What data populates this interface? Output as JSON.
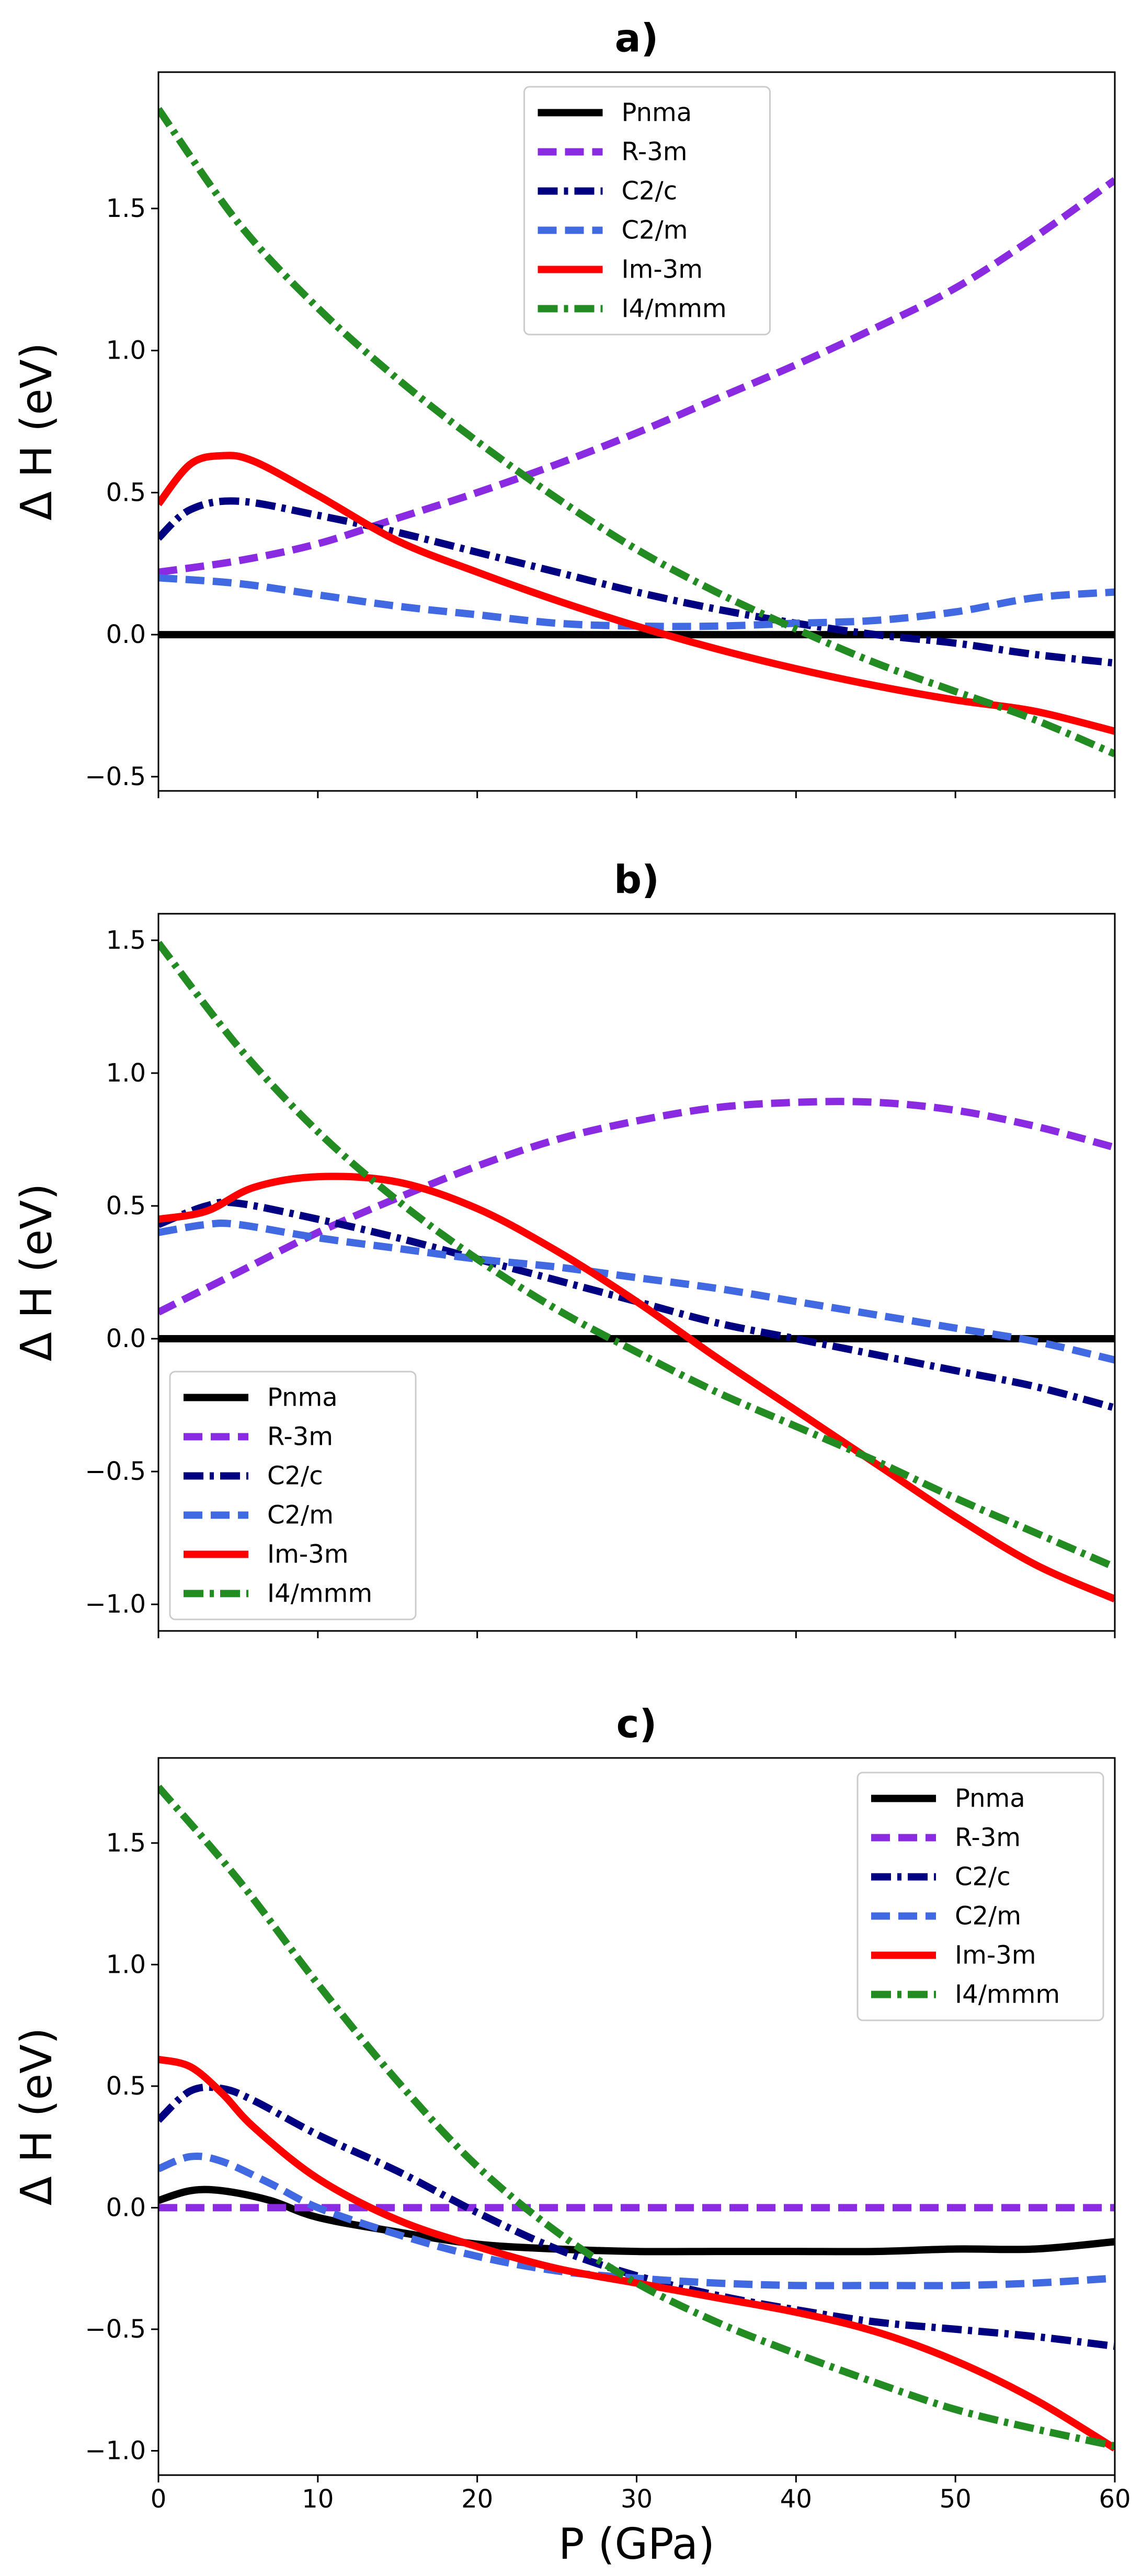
{
  "chart_data": [
    {
      "panel": "a",
      "type": "line",
      "title": "a)",
      "xlabel": "",
      "ylabel": "Δ H (eV)",
      "xlim": [
        0,
        60
      ],
      "ylim": [
        -0.55,
        1.98
      ],
      "xticks": [
        0,
        10,
        20,
        30,
        40,
        50,
        60
      ],
      "yticks": [
        -0.5,
        0.0,
        0.5,
        1.0,
        1.5
      ],
      "ytick_labels": [
        "−0.5",
        "0.0",
        "0.5",
        "1.0",
        "1.5"
      ],
      "show_xtick_labels": false,
      "grid": false,
      "legend_position": "top-center",
      "series": [
        {
          "name": "Pnma",
          "x": [
            0,
            10,
            20,
            30,
            40,
            50,
            60
          ],
          "y": [
            0,
            0,
            0,
            0,
            0,
            0,
            0
          ]
        },
        {
          "name": "R-3m",
          "x": [
            0,
            5,
            10,
            15,
            20,
            25,
            30,
            35,
            40,
            45,
            50,
            55,
            60
          ],
          "y": [
            0.22,
            0.26,
            0.32,
            0.41,
            0.5,
            0.6,
            0.71,
            0.83,
            0.95,
            1.08,
            1.22,
            1.4,
            1.6
          ]
        },
        {
          "name": "C2/c",
          "x": [
            0,
            2,
            5,
            10,
            15,
            20,
            25,
            30,
            35,
            40,
            45,
            50,
            55,
            60
          ],
          "y": [
            0.34,
            0.44,
            0.47,
            0.42,
            0.36,
            0.29,
            0.22,
            0.15,
            0.09,
            0.04,
            0.0,
            -0.03,
            -0.07,
            -0.1
          ]
        },
        {
          "name": "C2/m",
          "x": [
            0,
            5,
            10,
            15,
            20,
            25,
            30,
            35,
            40,
            45,
            50,
            55,
            60
          ],
          "y": [
            0.2,
            0.18,
            0.14,
            0.1,
            0.07,
            0.04,
            0.03,
            0.03,
            0.04,
            0.05,
            0.08,
            0.13,
            0.15
          ]
        },
        {
          "name": "Im-3m",
          "x": [
            0,
            2,
            4,
            6,
            10,
            15,
            20,
            25,
            30,
            35,
            40,
            45,
            50,
            55,
            60
          ],
          "y": [
            0.46,
            0.6,
            0.63,
            0.61,
            0.49,
            0.33,
            0.22,
            0.12,
            0.03,
            -0.05,
            -0.12,
            -0.18,
            -0.23,
            -0.27,
            -0.34
          ]
        },
        {
          "name": "I4/mmm",
          "x": [
            0,
            5,
            10,
            15,
            20,
            25,
            30,
            35,
            40,
            45,
            50,
            55,
            60
          ],
          "y": [
            1.85,
            1.45,
            1.15,
            0.9,
            0.68,
            0.48,
            0.3,
            0.15,
            0.02,
            -0.1,
            -0.2,
            -0.3,
            -0.42
          ]
        }
      ]
    },
    {
      "panel": "b",
      "type": "line",
      "title": "b)",
      "xlabel": "",
      "ylabel": "Δ H (eV)",
      "xlim": [
        0,
        60
      ],
      "ylim": [
        -1.1,
        1.6
      ],
      "xticks": [
        0,
        10,
        20,
        30,
        40,
        50,
        60
      ],
      "yticks": [
        -1.0,
        -0.5,
        0.0,
        0.5,
        1.0,
        1.5
      ],
      "ytick_labels": [
        "−1.0",
        "−0.5",
        "0.0",
        "0.5",
        "1.0",
        "1.5"
      ],
      "show_xtick_labels": false,
      "grid": false,
      "legend_position": "lower-left",
      "series": [
        {
          "name": "Pnma",
          "x": [
            0,
            10,
            20,
            30,
            40,
            50,
            60
          ],
          "y": [
            0,
            0,
            0,
            0,
            0,
            0,
            0
          ]
        },
        {
          "name": "R-3m",
          "x": [
            0,
            5,
            10,
            15,
            20,
            25,
            30,
            35,
            40,
            45,
            50,
            55,
            60
          ],
          "y": [
            0.1,
            0.25,
            0.4,
            0.53,
            0.65,
            0.75,
            0.82,
            0.87,
            0.89,
            0.89,
            0.86,
            0.8,
            0.72
          ]
        },
        {
          "name": "C2/c",
          "x": [
            0,
            3,
            5,
            10,
            15,
            20,
            25,
            30,
            35,
            40,
            45,
            50,
            55,
            60
          ],
          "y": [
            0.43,
            0.5,
            0.51,
            0.45,
            0.38,
            0.3,
            0.22,
            0.14,
            0.06,
            0.0,
            -0.06,
            -0.12,
            -0.18,
            -0.26
          ]
        },
        {
          "name": "C2/m",
          "x": [
            0,
            3,
            5,
            10,
            15,
            20,
            25,
            30,
            35,
            40,
            45,
            50,
            55,
            60
          ],
          "y": [
            0.4,
            0.43,
            0.43,
            0.38,
            0.34,
            0.3,
            0.27,
            0.23,
            0.19,
            0.14,
            0.09,
            0.04,
            -0.01,
            -0.08
          ]
        },
        {
          "name": "Im-3m",
          "x": [
            0,
            3,
            6,
            10,
            15,
            20,
            25,
            30,
            35,
            40,
            45,
            50,
            55,
            60
          ],
          "y": [
            0.45,
            0.48,
            0.57,
            0.61,
            0.59,
            0.49,
            0.33,
            0.14,
            -0.07,
            -0.27,
            -0.47,
            -0.67,
            -0.85,
            -0.98
          ]
        },
        {
          "name": "I4/mmm",
          "x": [
            0,
            5,
            10,
            15,
            20,
            25,
            30,
            35,
            40,
            45,
            50,
            55,
            60
          ],
          "y": [
            1.49,
            1.1,
            0.78,
            0.52,
            0.3,
            0.11,
            -0.05,
            -0.2,
            -0.33,
            -0.46,
            -0.6,
            -0.73,
            -0.86
          ]
        }
      ]
    },
    {
      "panel": "c",
      "type": "line",
      "title": "c)",
      "xlabel": "P (GPa)",
      "ylabel": "Δ H (eV)",
      "xlim": [
        0,
        60
      ],
      "ylim": [
        -1.1,
        1.85
      ],
      "xticks": [
        0,
        10,
        20,
        30,
        40,
        50,
        60
      ],
      "xtick_labels": [
        "0",
        "10",
        "20",
        "30",
        "40",
        "50",
        "60"
      ],
      "yticks": [
        -1.0,
        -0.5,
        0.0,
        0.5,
        1.0,
        1.5
      ],
      "ytick_labels": [
        "−1.0",
        "−0.5",
        "0.0",
        "0.5",
        "1.0",
        "1.5"
      ],
      "show_xtick_labels": true,
      "grid": false,
      "legend_position": "top-right",
      "series": [
        {
          "name": "Pnma",
          "x": [
            0,
            2,
            4,
            7,
            10,
            15,
            20,
            25,
            30,
            35,
            40,
            45,
            50,
            55,
            60
          ],
          "y": [
            0.03,
            0.07,
            0.07,
            0.03,
            -0.04,
            -0.1,
            -0.15,
            -0.17,
            -0.18,
            -0.18,
            -0.18,
            -0.18,
            -0.17,
            -0.17,
            -0.14
          ]
        },
        {
          "name": "R-3m",
          "x": [
            0,
            10,
            20,
            30,
            40,
            50,
            60
          ],
          "y": [
            0,
            0,
            0,
            0,
            0,
            0,
            0
          ]
        },
        {
          "name": "C2/c",
          "x": [
            0,
            2,
            4,
            6,
            10,
            15,
            20,
            25,
            30,
            35,
            40,
            45,
            50,
            55,
            60
          ],
          "y": [
            0.36,
            0.48,
            0.49,
            0.44,
            0.3,
            0.15,
            -0.02,
            -0.17,
            -0.28,
            -0.36,
            -0.42,
            -0.47,
            -0.5,
            -0.53,
            -0.57
          ]
        },
        {
          "name": "C2/m",
          "x": [
            0,
            2,
            4,
            7,
            10,
            15,
            20,
            25,
            30,
            35,
            40,
            45,
            50,
            55,
            60
          ],
          "y": [
            0.16,
            0.21,
            0.19,
            0.1,
            0.0,
            -0.11,
            -0.2,
            -0.26,
            -0.29,
            -0.31,
            -0.32,
            -0.32,
            -0.32,
            -0.31,
            -0.29
          ]
        },
        {
          "name": "Im-3m",
          "x": [
            0,
            2,
            4,
            6,
            10,
            15,
            20,
            25,
            30,
            35,
            40,
            45,
            50,
            55,
            60
          ],
          "y": [
            0.61,
            0.58,
            0.47,
            0.33,
            0.12,
            -0.05,
            -0.16,
            -0.25,
            -0.31,
            -0.37,
            -0.43,
            -0.51,
            -0.63,
            -0.79,
            -0.99
          ]
        },
        {
          "name": "I4/mmm",
          "x": [
            0,
            5,
            10,
            15,
            20,
            25,
            30,
            35,
            40,
            45,
            50,
            55,
            60
          ],
          "y": [
            1.73,
            1.35,
            0.92,
            0.52,
            0.17,
            -0.1,
            -0.31,
            -0.47,
            -0.6,
            -0.72,
            -0.83,
            -0.91,
            -0.98
          ]
        }
      ]
    }
  ],
  "colors": {
    "Pnma": "#000000",
    "R-3m": "#8a2be2",
    "C2/c": "#000080",
    "C2/m": "#4169e1",
    "Im-3m": "#ff0000",
    "I4/mmm": "#228b22"
  },
  "linestyles": {
    "Pnma": "solid",
    "R-3m": "dashed",
    "C2/c": "dashdot",
    "C2/m": "dashed",
    "Im-3m": "solid",
    "I4/mmm": "dashdot"
  },
  "legend_order": [
    "Pnma",
    "R-3m",
    "C2/c",
    "C2/m",
    "Im-3m",
    "I4/mmm"
  ]
}
